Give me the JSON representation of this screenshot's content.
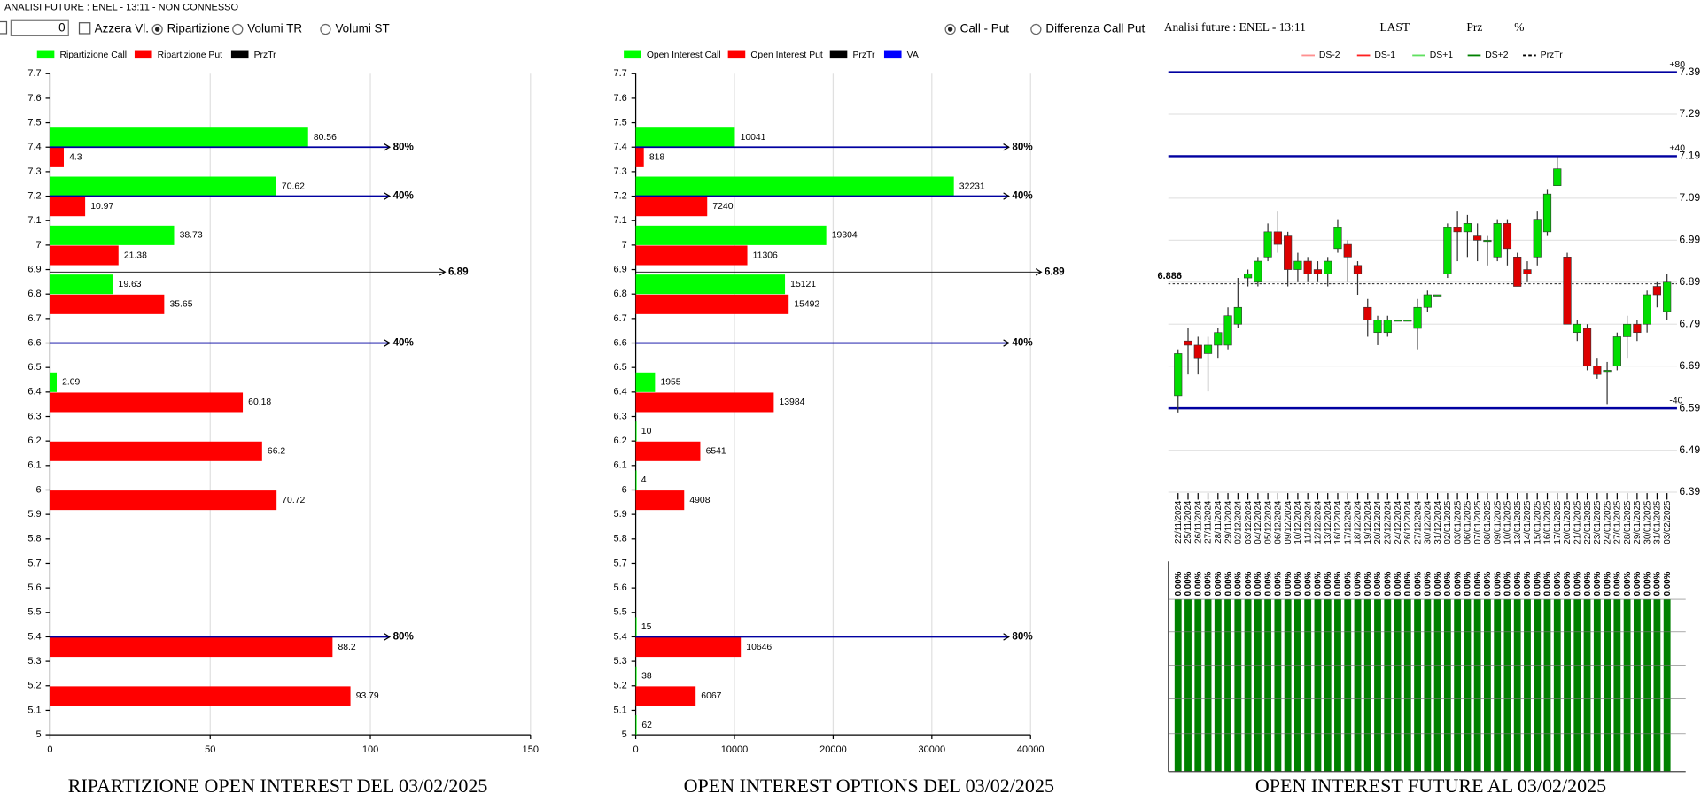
{
  "window": {
    "title": "ANALISI FUTURE : ENEL - 13:11 - NON CONNESSO"
  },
  "toolbar": {
    "input_value": "0",
    "checkbox": "Azzera Vl.",
    "radios": [
      "Ripartizione",
      "Volumi TR",
      "Volumi ST"
    ],
    "selected_radio": 0,
    "view_radios": [
      "Call - Put",
      "Differenza Call Put"
    ],
    "selected_view": 0
  },
  "chart_data": [
    {
      "type": "bar",
      "orientation": "horizontal",
      "title": "RIPARTIZIONE OPEN INTEREST DEL 03/02/2025",
      "y": [
        7.4,
        7.2,
        7,
        6.8,
        6.4,
        6.2,
        6,
        5.4,
        5.2,
        5
      ],
      "series": [
        {
          "name": "Ripartizione Call",
          "color": "#00ff00",
          "values": [
            80.56,
            70.62,
            38.73,
            19.63,
            2.09,
            null,
            null,
            null,
            null,
            null
          ]
        },
        {
          "name": "Ripartizione Put",
          "color": "#ff0000",
          "values": [
            4.3,
            10.97,
            21.38,
            35.65,
            60.18,
            66.2,
            70.72,
            88.2,
            93.79,
            null
          ]
        }
      ],
      "legend_items": [
        {
          "name": "PrzTr",
          "color": "#000000"
        }
      ],
      "xlim": [
        0,
        150
      ],
      "xticks": [
        0,
        50,
        100,
        150
      ],
      "ylim": [
        5,
        7.7
      ],
      "yticks": [
        5,
        5.1,
        5.2,
        5.3,
        5.4,
        5.5,
        5.6,
        5.7,
        5.8,
        5.9,
        6,
        6.1,
        6.2,
        6.3,
        6.4,
        6.5,
        6.6,
        6.7,
        6.8,
        6.9,
        7,
        7.1,
        7.2,
        7.3,
        7.4,
        7.5,
        7.6,
        7.7
      ],
      "grid": true,
      "reference_lines": [
        {
          "y": 7.4,
          "label": "80%",
          "color": "#0000a0"
        },
        {
          "y": 7.2,
          "label": "40%",
          "color": "#0000a0"
        },
        {
          "y": 6.6,
          "label": "40%",
          "color": "#0000a0"
        },
        {
          "y": 5.4,
          "label": "80%",
          "color": "#0000a0"
        }
      ],
      "price_line": {
        "y": 6.89,
        "label": "6.89",
        "color": "#000000"
      }
    },
    {
      "type": "bar",
      "orientation": "horizontal",
      "title": "OPEN INTEREST OPTIONS DEL 03/02/2025",
      "y": [
        7.4,
        7.2,
        7,
        6.8,
        6.4,
        6.2,
        6,
        5.4,
        5.2,
        5
      ],
      "series": [
        {
          "name": "Open Interest Call",
          "color": "#00ff00",
          "values": [
            10041,
            32231,
            19304,
            15121,
            1955,
            10,
            4,
            15,
            38,
            62
          ]
        },
        {
          "name": "Open Interest Put",
          "color": "#ff0000",
          "values": [
            818,
            7240,
            11306,
            15492,
            13984,
            6541,
            4908,
            10646,
            6067,
            null
          ]
        }
      ],
      "legend_items": [
        {
          "name": "PrzTr",
          "color": "#000000"
        },
        {
          "name": "VA",
          "color": "#0000ff"
        }
      ],
      "xlim": [
        0,
        40000
      ],
      "xticks": [
        0,
        10000,
        20000,
        30000,
        40000
      ],
      "ylim": [
        5,
        7.7
      ],
      "yticks": [
        5,
        5.1,
        5.2,
        5.3,
        5.4,
        5.5,
        5.6,
        5.7,
        5.8,
        5.9,
        6,
        6.1,
        6.2,
        6.3,
        6.4,
        6.5,
        6.6,
        6.7,
        6.8,
        6.9,
        7,
        7.1,
        7.2,
        7.3,
        7.4,
        7.5,
        7.6,
        7.7
      ],
      "grid": true,
      "reference_lines": [
        {
          "y": 7.4,
          "label": "80%",
          "color": "#0000a0"
        },
        {
          "y": 7.2,
          "label": "40%",
          "color": "#0000a0"
        },
        {
          "y": 6.6,
          "label": "40%",
          "color": "#0000a0"
        },
        {
          "y": 5.4,
          "label": "80%",
          "color": "#0000a0"
        }
      ],
      "price_line": {
        "y": 6.89,
        "label": "6.89",
        "color": "#000000"
      }
    },
    {
      "type": "candlestick",
      "header": "Analisi future : ENEL - 13:11",
      "columns": [
        "LAST",
        "Prz",
        "%"
      ],
      "title": "OPEN INTEREST FUTURE AL 03/02/2025",
      "x": [
        "22/11/2024",
        "25/11/2024",
        "26/11/2024",
        "27/11/2024",
        "28/11/2024",
        "29/11/2024",
        "02/12/2024",
        "03/12/2024",
        "04/12/2024",
        "05/12/2024",
        "06/12/2024",
        "09/12/2024",
        "10/12/2024",
        "11/12/2024",
        "12/12/2024",
        "13/12/2024",
        "16/12/2024",
        "17/12/2024",
        "18/12/2024",
        "19/12/2024",
        "20/12/2024",
        "23/12/2024",
        "24/12/2024",
        "26/12/2024",
        "27/12/2024",
        "30/12/2024",
        "31/12/2024",
        "02/01/2025",
        "03/01/2025",
        "06/01/2025",
        "07/01/2025",
        "08/01/2025",
        "09/01/2025",
        "10/01/2025",
        "13/01/2025",
        "14/01/2025",
        "15/01/2025",
        "16/01/2025",
        "17/01/2025",
        "20/01/2025",
        "21/01/2025",
        "22/01/2025",
        "23/01/2025",
        "24/01/2025",
        "27/01/2025",
        "28/01/2025",
        "29/01/2025",
        "30/01/2025",
        "31/01/2025",
        "03/02/2025"
      ],
      "open": [
        6.62,
        6.75,
        6.74,
        6.72,
        6.74,
        6.74,
        6.79,
        6.9,
        6.89,
        6.95,
        7.01,
        7,
        6.92,
        6.94,
        6.92,
        6.91,
        6.97,
        6.98,
        6.93,
        6.83,
        6.77,
        6.77,
        6.8,
        6.8,
        6.78,
        6.83,
        6.86,
        6.91,
        7.02,
        7.01,
        7,
        6.99,
        6.95,
        7.03,
        6.95,
        6.92,
        6.95,
        7.01,
        7.12,
        6.95,
        6.77,
        6.78,
        6.69,
        6.68,
        6.69,
        6.76,
        6.79,
        6.79,
        6.88,
        6.82
      ],
      "high": [
        6.73,
        6.78,
        6.76,
        6.76,
        6.78,
        6.83,
        6.9,
        6.92,
        6.95,
        7.03,
        7.06,
        7.01,
        6.96,
        6.95,
        6.94,
        6.95,
        7.04,
        6.99,
        6.94,
        6.85,
        6.81,
        6.81,
        6.8,
        6.8,
        6.85,
        6.87,
        6.86,
        7.03,
        7.06,
        7.05,
        7.03,
        7,
        7.04,
        7.04,
        6.96,
        6.94,
        7.06,
        7.11,
        7.19,
        6.96,
        6.8,
        6.79,
        6.71,
        6.7,
        6.77,
        6.81,
        6.8,
        6.87,
        6.89,
        6.91
      ],
      "low": [
        6.58,
        6.67,
        6.67,
        6.63,
        6.71,
        6.73,
        6.78,
        6.88,
        6.88,
        6.94,
        6.96,
        6.88,
        6.89,
        6.89,
        6.89,
        6.88,
        6.96,
        6.89,
        6.86,
        6.76,
        6.74,
        6.76,
        6.8,
        6.8,
        6.73,
        6.82,
        6.86,
        6.9,
        6.94,
        6.95,
        6.94,
        6.93,
        6.94,
        6.93,
        6.88,
        6.89,
        6.93,
        7,
        7.12,
        6.79,
        6.75,
        6.68,
        6.66,
        6.6,
        6.68,
        6.71,
        6.75,
        6.77,
        6.83,
        6.8
      ],
      "close": [
        6.72,
        6.74,
        6.71,
        6.74,
        6.77,
        6.81,
        6.83,
        6.91,
        6.94,
        7.01,
        6.98,
        6.92,
        6.94,
        6.91,
        6.91,
        6.94,
        7.02,
        6.95,
        6.91,
        6.8,
        6.8,
        6.8,
        6.8,
        6.8,
        6.83,
        6.86,
        6.86,
        7.02,
        7.01,
        7.03,
        6.99,
        6.99,
        7.03,
        6.97,
        6.88,
        6.91,
        7.04,
        7.1,
        7.16,
        6.79,
        6.79,
        6.69,
        6.67,
        6.68,
        6.76,
        6.79,
        6.77,
        6.86,
        6.86,
        6.89
      ],
      "up_color": "#00dd00",
      "down_color": "#dd0000",
      "legend_items": [
        {
          "name": "DS-2",
          "color": "#ff9090",
          "dash": false
        },
        {
          "name": "DS-1",
          "color": "#ff2020",
          "dash": false
        },
        {
          "name": "DS+1",
          "color": "#60e060",
          "dash": false
        },
        {
          "name": "DS+2",
          "color": "#008000",
          "dash": false
        },
        {
          "name": "PrzTr",
          "color": "#000000",
          "dash": true
        }
      ],
      "ylim": [
        6.38,
        7.42
      ],
      "yticks": [
        6.39,
        6.49,
        6.59,
        6.69,
        6.79,
        6.89,
        6.99,
        7.09,
        7.19,
        7.29,
        7.39
      ],
      "grid": true,
      "reference_lines": [
        {
          "y": 7.39,
          "label": "+80",
          "color": "#0000a0"
        },
        {
          "y": 7.19,
          "label": "+40",
          "color": "#0000a0"
        },
        {
          "y": 6.59,
          "label": "-40",
          "color": "#0000a0"
        }
      ],
      "price_line": {
        "y": 6.886,
        "label": "6.886",
        "color": "#000000"
      },
      "pct_color": "#008000",
      "pct_labels": [
        "0.00%",
        "0.00%",
        "0.00%",
        "0.00%",
        "0.00%",
        "0.00%",
        "0.00%",
        "0.00%",
        "0.00%",
        "0.00%",
        "0.00%",
        "0.00%",
        "0.00%",
        "0.00%",
        "0.00%",
        "0.00%",
        "0.00%",
        "0.00%",
        "0.00%",
        "0.00%",
        "0.00%",
        "0.00%",
        "0.00%",
        "0.00%",
        "0.00%",
        "0.00%",
        "0.00%",
        "0.00%",
        "0.00%",
        "0.00%",
        "0.00%",
        "0.00%",
        "0.00%",
        "0.00%",
        "0.00%",
        "0.00%",
        "0.00%",
        "0.00%",
        "0.00%",
        "0.00%",
        "0.00%",
        "0.00%",
        "0.00%",
        "0.00%",
        "0.00%",
        "0.00%",
        "0.00%",
        "0.00%",
        "0.00%",
        "0.00%"
      ]
    }
  ]
}
